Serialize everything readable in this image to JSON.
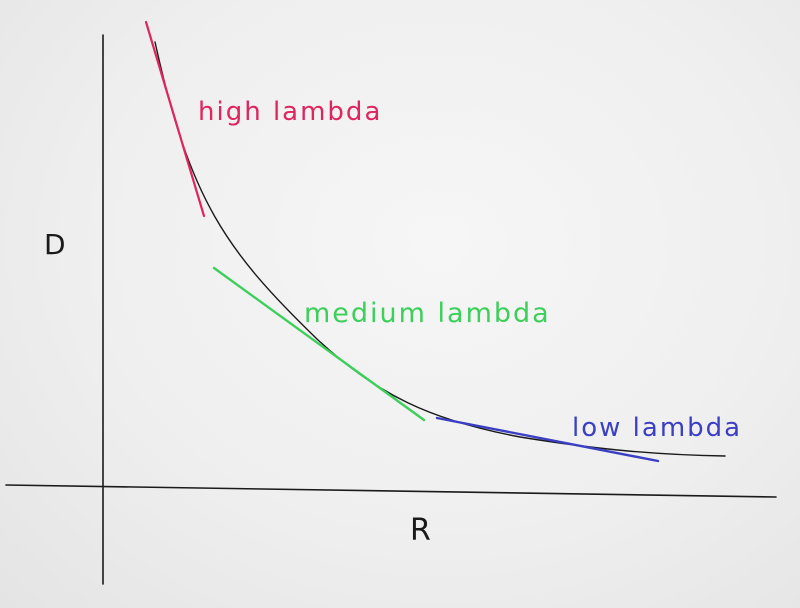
{
  "axes": {
    "y_label": "D",
    "x_label": "R",
    "color": "#1a1a1a"
  },
  "curve": {
    "color": "#1a1a1a"
  },
  "tangents": [
    {
      "label": "high lambda",
      "color": "#e0245e"
    },
    {
      "label": "medium lambda",
      "color": "#3ccf5a"
    },
    {
      "label": "low lambda",
      "color": "#3a3fc4"
    }
  ]
}
